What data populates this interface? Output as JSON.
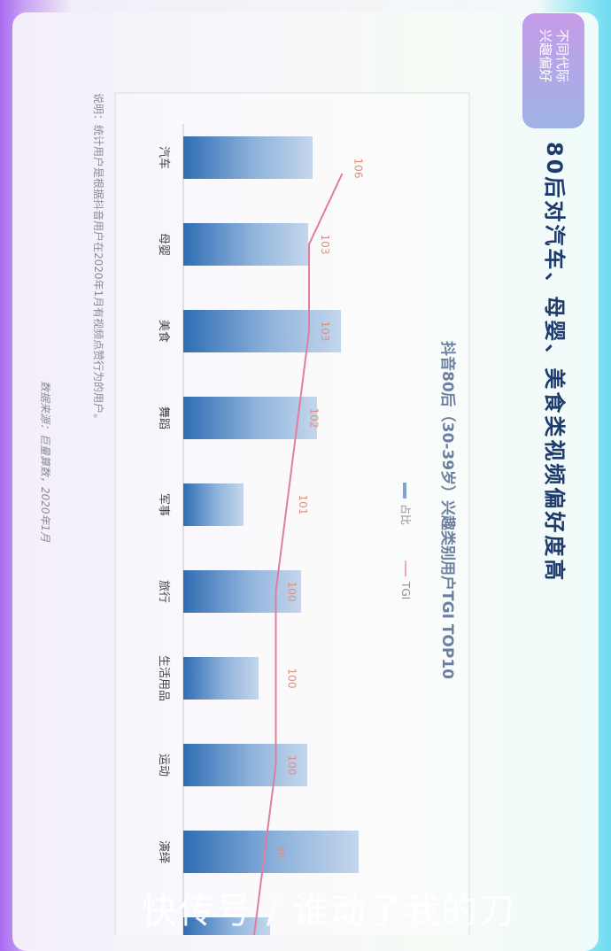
{
  "badge": {
    "line1": "不同代际",
    "line2": "兴趣偏好"
  },
  "headline": "80后对汽车、母婴、美食类视频偏好度高",
  "note": "说明：统计用户是根据抖音用户在2020年1月有视频点赞行为的用户。",
  "source": "数据来源：巨量算数，2020年1月",
  "watermark": "快传号 / 谁动了我的刀",
  "colors": {
    "bar_dark": "#2f6db3",
    "bar_light": "#c4d6ec",
    "tgi": "#e27c9e",
    "tgi_label": "#e0907f",
    "title": "#1f3b6e"
  },
  "chart_data": {
    "type": "bar",
    "title": "抖音80后（30-39岁）兴趣类别用户TGI TOP10",
    "legend": [
      "占比",
      "TGI"
    ],
    "categories": [
      "汽车",
      "母婴",
      "美食",
      "舞蹈",
      "军事",
      "旅行",
      "生活用品",
      "运动",
      "演绎",
      ""
    ],
    "series": [
      {
        "name": "占比",
        "type": "bar",
        "values": [
          146,
          141,
          178,
          151,
          68,
          133,
          85,
          140,
          198,
          98
        ]
      },
      {
        "name": "TGI",
        "type": "line",
        "values": [
          106,
          103,
          103,
          102,
          101,
          100,
          100,
          100,
          99,
          98
        ]
      }
    ],
    "legend_position": "top"
  }
}
